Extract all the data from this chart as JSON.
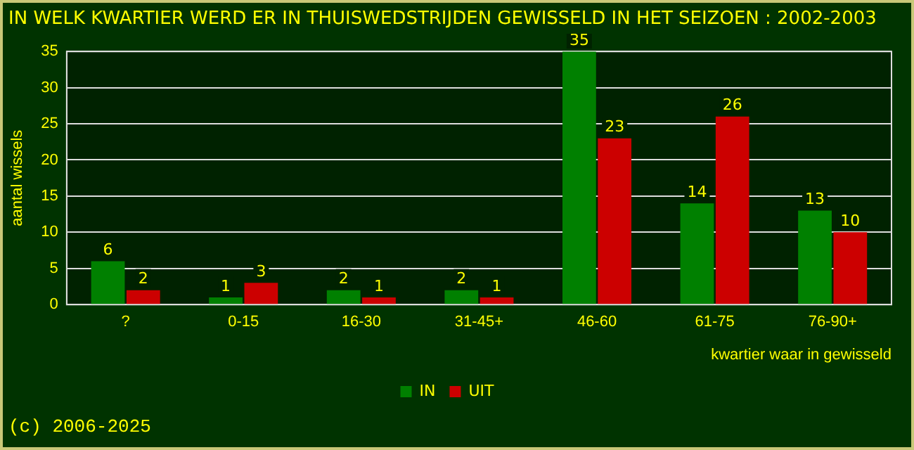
{
  "chart_data": {
    "type": "bar",
    "title": "IN WELK KWARTIER WERD ER IN THUISWEDSTRIJDEN GEWISSELD IN HET SEIZOEN : 2002-2003",
    "xlabel": "kwartier waar in gewisseld",
    "ylabel": "aantal wissels",
    "categories": [
      "?",
      "0-15",
      "16-30",
      "31-45+",
      "46-60",
      "61-75",
      "76-90+"
    ],
    "series": [
      {
        "name": "IN",
        "color": "#008000",
        "values": [
          6,
          1,
          2,
          2,
          35,
          14,
          13
        ]
      },
      {
        "name": "UIT",
        "color": "#cc0000",
        "values": [
          2,
          3,
          1,
          1,
          23,
          26,
          10
        ]
      }
    ],
    "ylim": [
      0,
      35
    ],
    "yticks": [
      0,
      5,
      10,
      15,
      20,
      25,
      30,
      35
    ],
    "grid": "y",
    "legend": "bottom",
    "data_labels": true,
    "annotations": [
      "(c) 2006-2025"
    ]
  }
}
